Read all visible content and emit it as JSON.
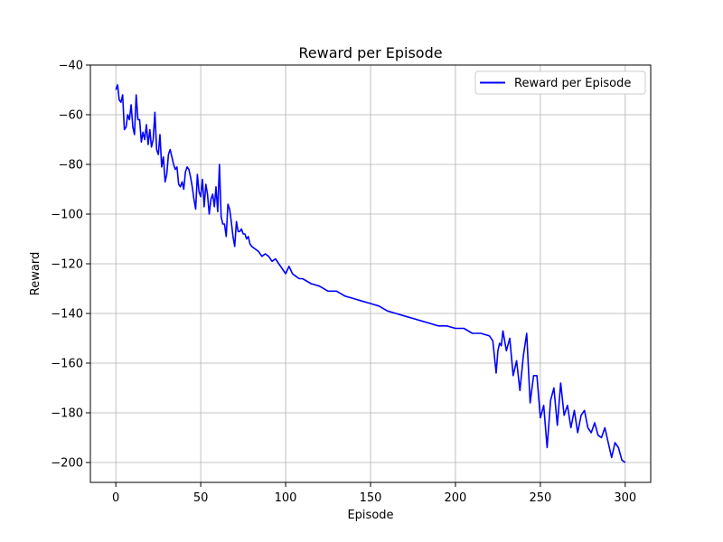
{
  "chart_data": {
    "type": "line",
    "title": "Reward per Episode",
    "xlabel": "Episode",
    "ylabel": "Reward",
    "xlim": [
      -15,
      315
    ],
    "ylim": [
      -208,
      -40
    ],
    "xticks": [
      0,
      50,
      100,
      150,
      200,
      250,
      300
    ],
    "yticks": [
      -40,
      -60,
      -80,
      -100,
      -120,
      -140,
      -160,
      -180,
      -200
    ],
    "grid": true,
    "legend_position": "top-right",
    "series": [
      {
        "name": "Reward per Episode",
        "color": "#0000ff",
        "x": [
          0,
          1,
          2,
          3,
          4,
          5,
          6,
          7,
          8,
          9,
          10,
          11,
          12,
          13,
          14,
          15,
          16,
          17,
          18,
          19,
          20,
          21,
          22,
          23,
          24,
          25,
          26,
          27,
          28,
          29,
          30,
          31,
          32,
          33,
          34,
          35,
          36,
          37,
          38,
          39,
          40,
          41,
          42,
          43,
          44,
          45,
          46,
          47,
          48,
          49,
          50,
          51,
          52,
          53,
          54,
          55,
          56,
          57,
          58,
          59,
          60,
          61,
          62,
          63,
          64,
          65,
          66,
          67,
          68,
          69,
          70,
          71,
          72,
          73,
          74,
          75,
          76,
          77,
          78,
          79,
          80,
          82,
          84,
          86,
          88,
          90,
          92,
          94,
          96,
          98,
          100,
          102,
          104,
          106,
          108,
          110,
          115,
          120,
          125,
          130,
          135,
          140,
          145,
          150,
          155,
          160,
          165,
          170,
          175,
          180,
          185,
          190,
          195,
          200,
          205,
          210,
          215,
          220,
          222,
          224,
          225,
          226,
          227,
          228,
          230,
          232,
          234,
          236,
          238,
          240,
          242,
          244,
          246,
          248,
          250,
          252,
          254,
          256,
          258,
          260,
          262,
          264,
          266,
          268,
          270,
          272,
          274,
          276,
          278,
          280,
          282,
          284,
          286,
          288,
          290,
          292,
          294,
          296,
          298,
          300
        ],
        "y": [
          -50,
          -48,
          -54,
          -55,
          -52,
          -66,
          -65,
          -60,
          -62,
          -56,
          -65,
          -68,
          -52,
          -62,
          -62,
          -71,
          -67,
          -70,
          -64,
          -72,
          -66,
          -73,
          -70,
          -59,
          -74,
          -76,
          -68,
          -81,
          -77,
          -87,
          -84,
          -76,
          -74,
          -77,
          -80,
          -82,
          -81,
          -88,
          -89,
          -87,
          -90,
          -83,
          -81,
          -82,
          -85,
          -89,
          -94,
          -98,
          -84,
          -91,
          -93,
          -86,
          -97,
          -88,
          -92,
          -100,
          -94,
          -92,
          -97,
          -89,
          -99,
          -80,
          -101,
          -104,
          -104,
          -109,
          -96,
          -98,
          -103,
          -109,
          -113,
          -103,
          -107,
          -107,
          -106,
          -108,
          -108,
          -110,
          -109,
          -112,
          -113,
          -114,
          -115,
          -117,
          -116,
          -117,
          -119,
          -118,
          -120,
          -122,
          -124,
          -121,
          -124,
          -125,
          -126,
          -126,
          -128,
          -129,
          -131,
          -131,
          -133,
          -134,
          -135,
          -136,
          -137,
          -139,
          -140,
          -141,
          -142,
          -143,
          -144,
          -145,
          -145,
          -146,
          -146,
          -148,
          -148,
          -149,
          -151,
          -164,
          -155,
          -152,
          -153,
          -147,
          -155,
          -150,
          -165,
          -159,
          -171,
          -157,
          -148,
          -176,
          -165,
          -165,
          -182,
          -177,
          -194,
          -175,
          -170,
          -185,
          -168,
          -181,
          -177,
          -186,
          -179,
          -188,
          -181,
          -179,
          -186,
          -188,
          -184,
          -189,
          -190,
          -186,
          -192,
          -198,
          -192,
          -194,
          -199,
          -200
        ],
        "x_detail_note_removed": null
      }
    ]
  }
}
